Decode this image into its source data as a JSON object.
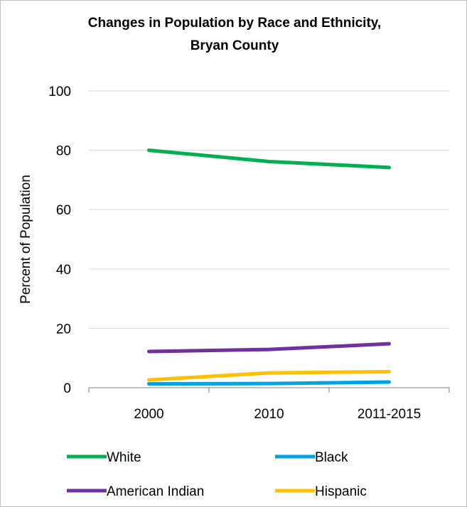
{
  "chart_data": {
    "type": "line",
    "title_line1": "Changes in Population by Race and Ethnicity,",
    "title_line2": "Bryan County",
    "ylabel": "Percent of Population",
    "xlabel": "",
    "categories": [
      "2000",
      "2010",
      "2011-2015"
    ],
    "ylim": [
      0,
      100
    ],
    "yticks": [
      0,
      20,
      40,
      60,
      80,
      100
    ],
    "grid": true,
    "legend": "bottom",
    "series": [
      {
        "name": "White",
        "color": "#00b050",
        "values": [
          80.0,
          76.2,
          74.2
        ]
      },
      {
        "name": "Black",
        "color": "#00a2e0",
        "values": [
          1.3,
          1.4,
          1.9
        ]
      },
      {
        "name": "American Indian",
        "color": "#7030a0",
        "values": [
          12.2,
          12.9,
          14.8
        ]
      },
      {
        "name": "Hispanic",
        "color": "#ffc000",
        "values": [
          2.6,
          5.0,
          5.4
        ]
      }
    ]
  }
}
